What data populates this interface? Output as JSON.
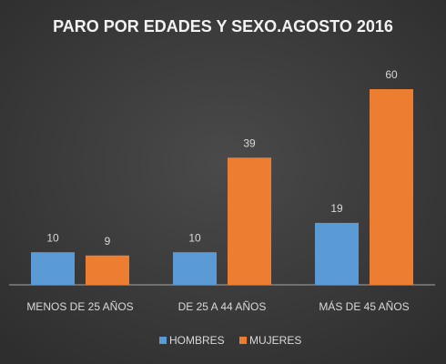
{
  "chart_data": {
    "type": "bar",
    "title": "PARO POR EDADES Y SEXO.AGOSTO 2016",
    "categories": [
      "MENOS DE 25 AÑOS",
      "DE 25 A 44 AÑOS",
      "MÁS DE 45 AÑOS"
    ],
    "series": [
      {
        "name": "HOMBRES",
        "color": "#5b9bd5",
        "values": [
          10,
          10,
          19
        ]
      },
      {
        "name": "MUJERES",
        "color": "#ed7d31",
        "values": [
          9,
          39,
          60
        ]
      }
    ]
  }
}
